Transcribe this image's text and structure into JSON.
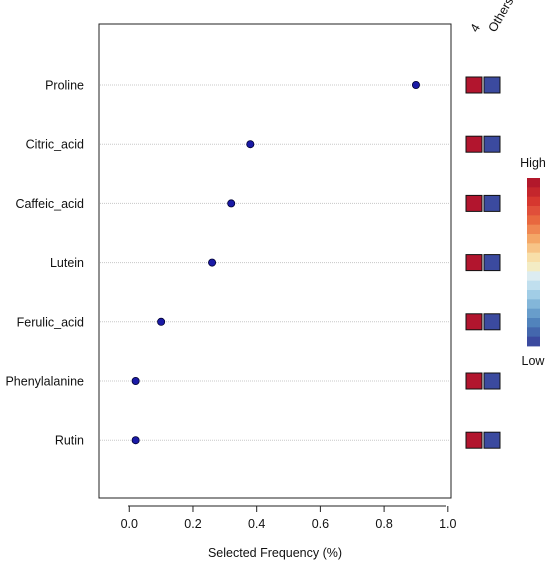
{
  "chart_data": {
    "type": "scatter",
    "title": "",
    "xlabel": "Selected Frequency (%)",
    "ylabel": "",
    "xlim": [
      -0.095,
      1.01
    ],
    "x_ticks": [
      "0.0",
      "0.2",
      "0.4",
      "0.6",
      "0.8",
      "1.0"
    ],
    "categories": [
      "Proline",
      "Citric_acid",
      "Caffeic_acid",
      "Lutein",
      "Ferulic_acid",
      "Phenylalanine",
      "Rutin"
    ],
    "values": [
      0.9,
      0.38,
      0.32,
      0.26,
      0.1,
      0.02,
      0.02
    ],
    "point_color": "#1a1aa6",
    "grid": "horizontal",
    "group_columns": [
      "4",
      "Others"
    ],
    "group_cells": [
      [
        "high",
        "low"
      ],
      [
        "high",
        "low"
      ],
      [
        "high",
        "low"
      ],
      [
        "high",
        "low"
      ],
      [
        "high",
        "low"
      ],
      [
        "high",
        "low"
      ],
      [
        "high",
        "low"
      ]
    ],
    "cell_colors": {
      "high": "#b2152e",
      "low": "#3b4a9f"
    },
    "legend": {
      "high_label": "High",
      "low_label": "Low",
      "colors": [
        "#b2182b",
        "#c4262c",
        "#d6372f",
        "#e04f3a",
        "#e8683f",
        "#ef8752",
        "#f4a767",
        "#f7c487",
        "#f8dfa9",
        "#f3ecc4",
        "#dcecf1",
        "#c0dfee",
        "#a1cde6",
        "#83b6d9",
        "#689dcb",
        "#5183bc",
        "#4467ad",
        "#3b4a9f"
      ]
    }
  }
}
